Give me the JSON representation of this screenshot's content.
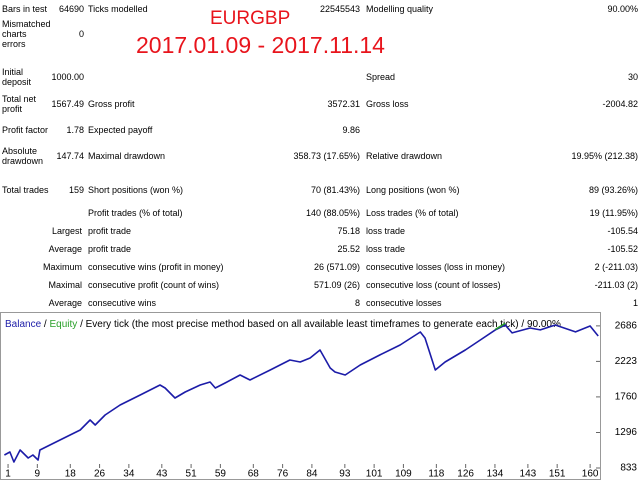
{
  "report": {
    "symbol": "EURGBP",
    "period": "2017.01.09 - 2017.11.14",
    "rows": [
      {
        "label": "Bars in test",
        "value": "64690",
        "label2": "Ticks modelled",
        "value2": "22545543",
        "label3": "Modelling quality",
        "value3": "90.00%"
      },
      {
        "label": "Mismatched charts errors",
        "value": "0"
      },
      {
        "label": "Initial deposit",
        "value": "1000.00",
        "label3": "Spread",
        "value3": "30"
      },
      {
        "label": "Total net profit",
        "value": "1567.49",
        "label2": "Gross profit",
        "value2": "3572.31",
        "label3": "Gross loss",
        "value3": "-2004.82"
      },
      {
        "label": "Profit factor",
        "value": "1.78",
        "label2": "Expected payoff",
        "value2": "9.86"
      },
      {
        "label": "Absolute drawdown",
        "value": "147.74",
        "label2": "Maximal drawdown",
        "value2": "358.73 (17.65%)",
        "label3": "Relative drawdown",
        "value3": "19.95% (212.38)"
      },
      {
        "label": "Total trades",
        "value": "159",
        "label2": "Short positions (won %)",
        "value2": "70 (81.43%)",
        "label3": "Long positions (won %)",
        "value3": "89 (93.26%)"
      },
      {
        "label2": "Profit trades (% of total)",
        "value2": "140 (88.05%)",
        "label3": "Loss trades (% of total)",
        "value3": "19 (11.95%)"
      },
      {
        "prefix": "Largest",
        "label2": "profit trade",
        "value2": "75.18",
        "label3": "loss trade",
        "value3": "-105.54"
      },
      {
        "prefix": "Average",
        "label2": "profit trade",
        "value2": "25.52",
        "label3": "loss trade",
        "value3": "-105.52"
      },
      {
        "prefix": "Maximum",
        "label2": "consecutive wins (profit in money)",
        "value2": "26 (571.09)",
        "label3": "consecutive losses (loss in money)",
        "value3": "2 (-211.03)"
      },
      {
        "prefix": "Maximal",
        "label2": "consecutive profit (count of wins)",
        "value2": "571.09 (26)",
        "label3": "consecutive loss (count of losses)",
        "value3": "-211.03 (2)"
      },
      {
        "prefix": "Average",
        "label2": "consecutive wins",
        "value2": "8",
        "label3": "consecutive losses",
        "value3": "1"
      }
    ]
  },
  "chart_data": {
    "type": "line",
    "separator": "/",
    "caption": "Every tick (the most precise method based on all available least timeframes to generate each tick) / 90.00%",
    "x": [
      0,
      1.5,
      2.6,
      4.3,
      6.5,
      7.8,
      9.2,
      9.7,
      15.2,
      20.7,
      23.4,
      24.8,
      27.5,
      31.6,
      37.1,
      42.5,
      43.9,
      46.6,
      49.4,
      53.5,
      56.2,
      57.6,
      60.3,
      64.4,
      67.1,
      72.6,
      78.0,
      80.8,
      83.5,
      86.2,
      89.0,
      90.3,
      93.1,
      97.2,
      102.6,
      108.1,
      113.6,
      114.9,
      117.7,
      120.4,
      125.9,
      130.0,
      134.1,
      136.8,
      138.7,
      143.6,
      146.4,
      150.5,
      156.0,
      160.0,
      162.2
    ],
    "series": [
      {
        "name": "Balance",
        "color": "#1c1ca8",
        "values": [
          1003,
          1042,
          911,
          1068,
          963,
          1003,
          937,
          1068,
          1198,
          1329,
          1459,
          1394,
          1524,
          1655,
          1785,
          1915,
          1876,
          1746,
          1824,
          1915,
          1954,
          1876,
          1941,
          2046,
          1981,
          2111,
          2241,
          2215,
          2267,
          2372,
          2137,
          2085,
          2046,
          2176,
          2307,
          2437,
          2606,
          2528,
          2111,
          2215,
          2372,
          2502,
          2633,
          2698,
          2594,
          2659,
          2633,
          2698,
          2607,
          2685,
          2554
        ]
      },
      {
        "name": "Equity",
        "color": "#2aa02a",
        "values": [
          null,
          null,
          null,
          null,
          null,
          null,
          null,
          null,
          null,
          null,
          null,
          null,
          null,
          null,
          null,
          null,
          null,
          null,
          null,
          null,
          null,
          null,
          null,
          null,
          null,
          null,
          null,
          null,
          null,
          null,
          null,
          null,
          null,
          null,
          null,
          null,
          null,
          null,
          null,
          null,
          null,
          null,
          2640,
          2720,
          null,
          null,
          null,
          null,
          null,
          null,
          null
        ]
      }
    ],
    "xlim": [
      -1.2,
      162.7
    ],
    "ylim": [
      833,
      2867
    ],
    "xticks": [
      1,
      9,
      18,
      26,
      34,
      43,
      51,
      59,
      68,
      76,
      84,
      93,
      101,
      109,
      118,
      126,
      134,
      143,
      151,
      160
    ],
    "yticks": [
      833,
      1296,
      1760,
      2223,
      2686
    ]
  }
}
